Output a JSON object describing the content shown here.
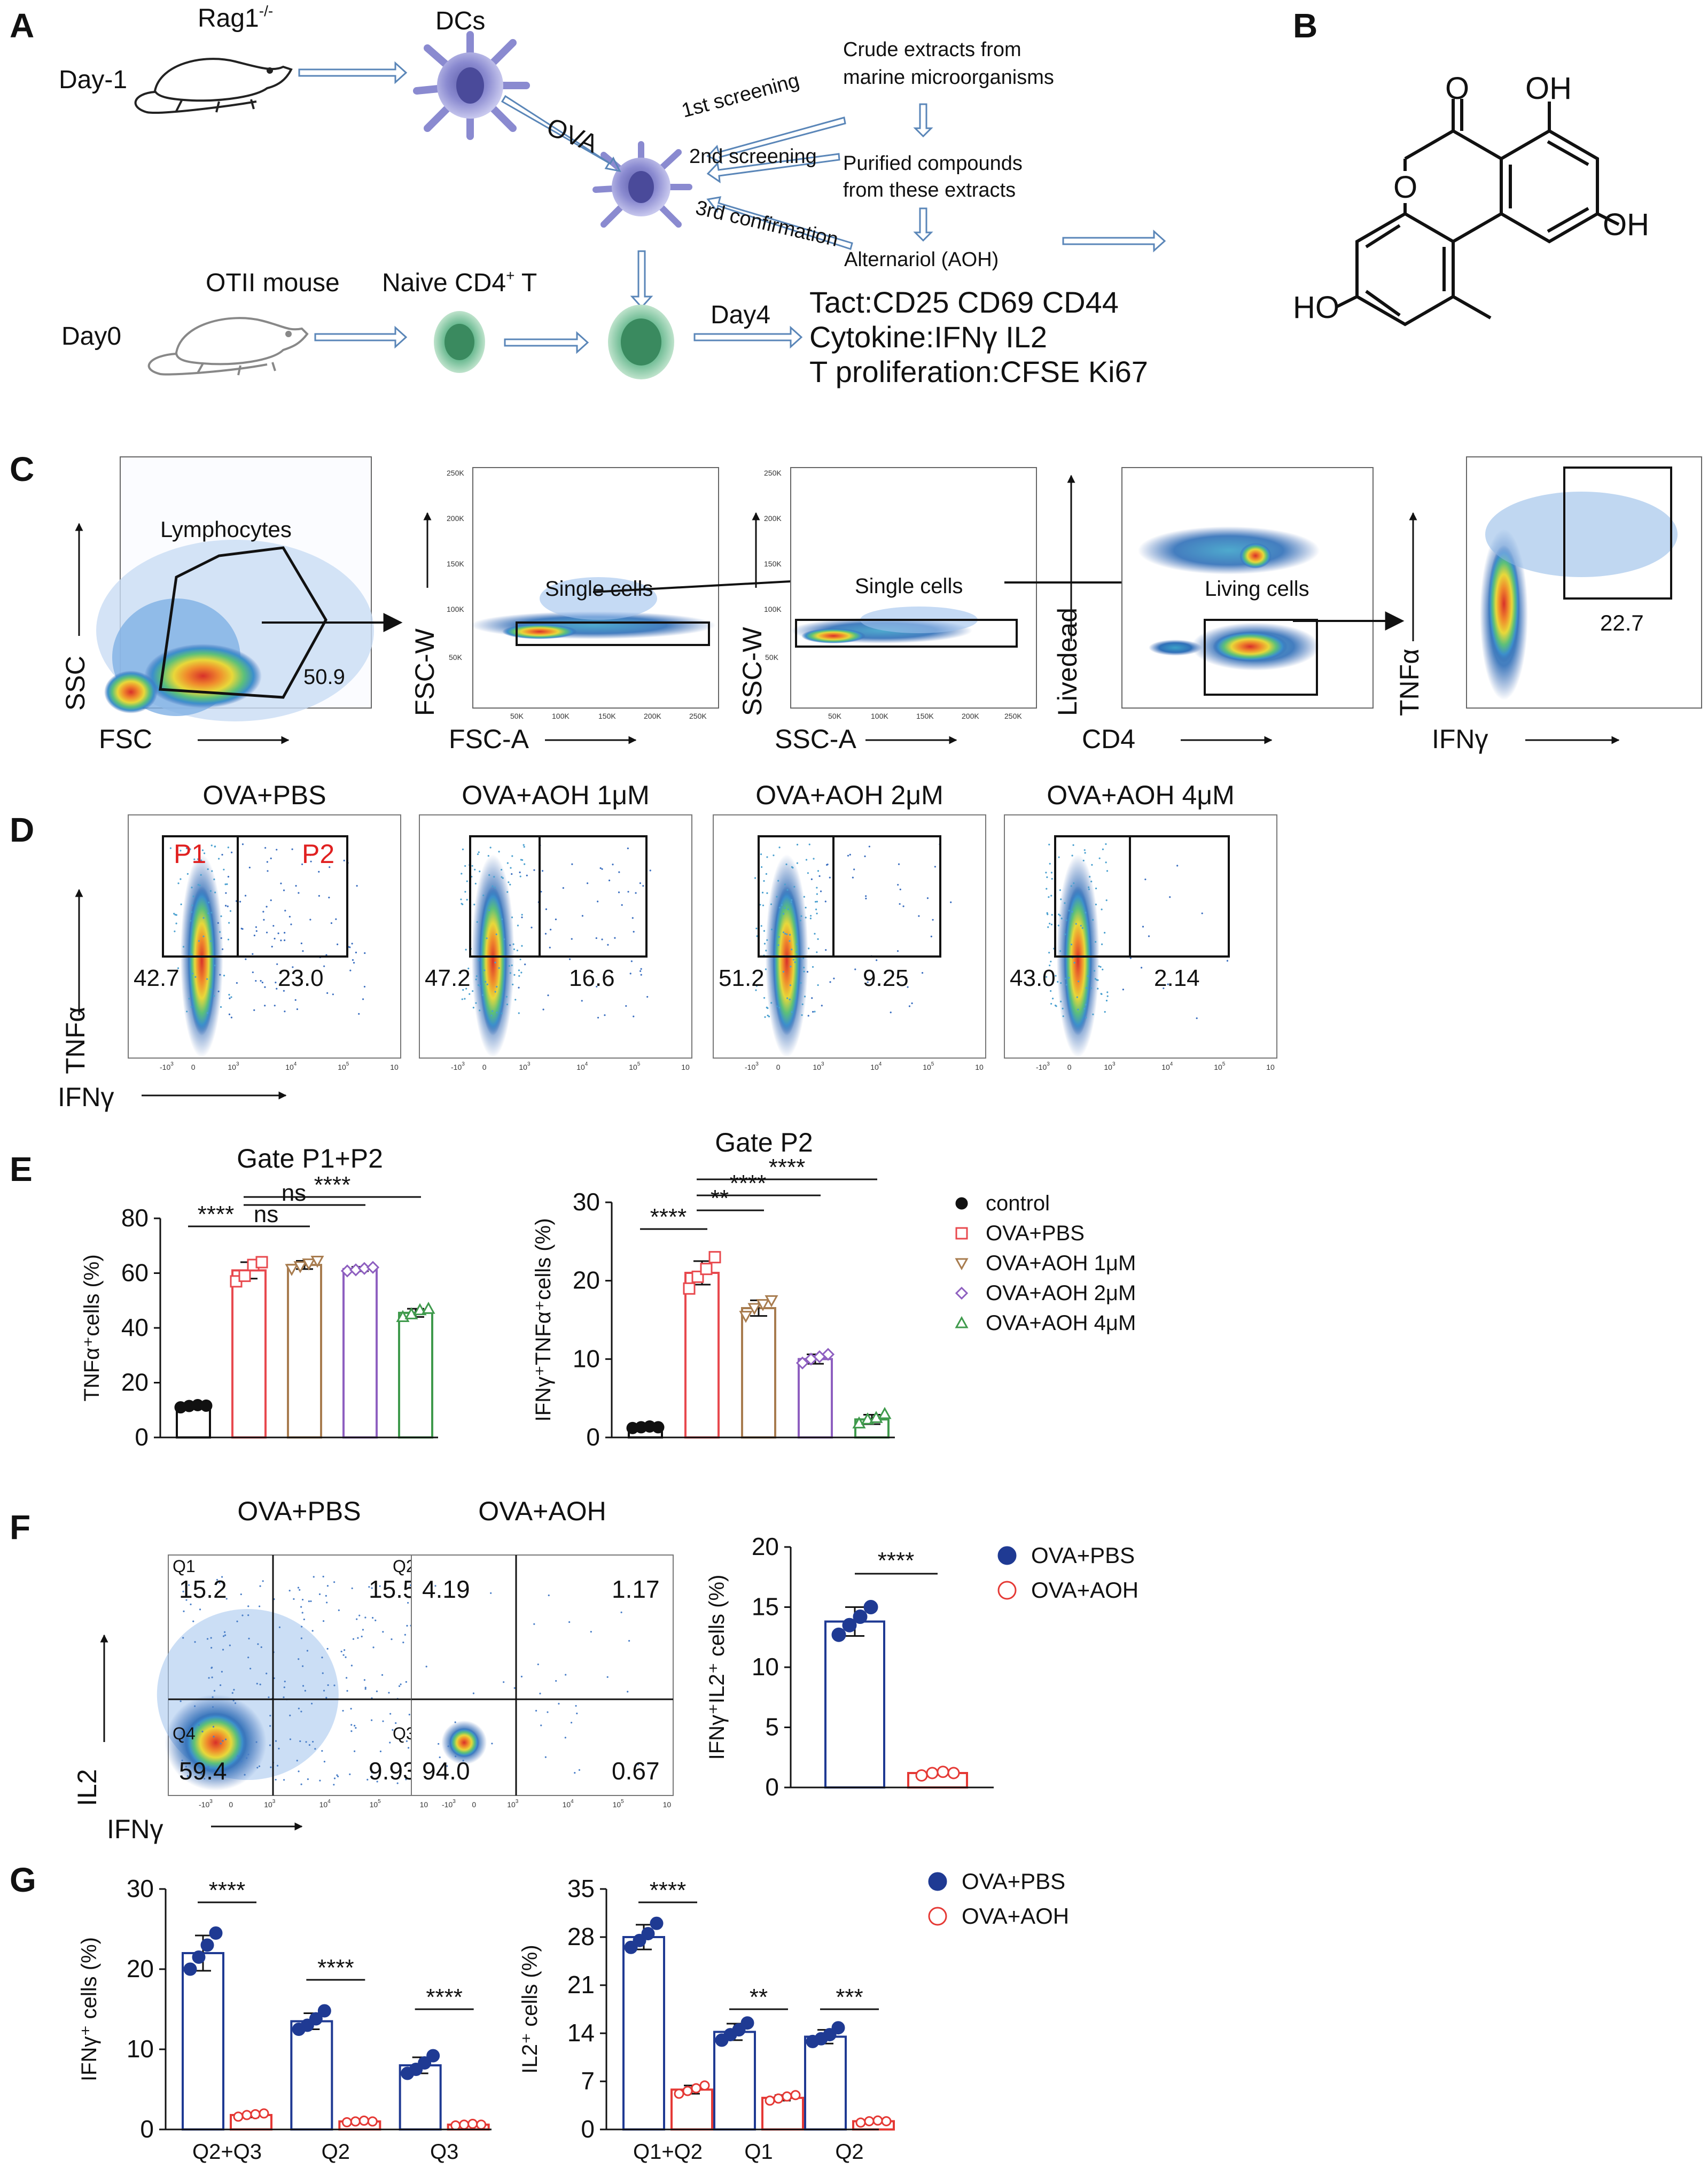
{
  "panel_letters": [
    "A",
    "B",
    "C",
    "D",
    "E",
    "F",
    "G"
  ],
  "colors": {
    "ctrl": "#111111",
    "pbs": "#e8494e",
    "aoh1": "#a87c4f",
    "aoh2": "#8e5fc0",
    "aoh4": "#3f9a4c",
    "blue": "#1f3a93",
    "red": "#e53935",
    "arrow": "#5a86b8"
  },
  "panelA": {
    "mouse1": "Rag1",
    "mouse1_sup": "-/-",
    "day1": "Day-1",
    "dcs": "DCs",
    "ova": "OVA",
    "screen1": "1st screening",
    "screen2": "2nd screening",
    "screen3": "3rd confirmation",
    "crude1": "Crude extracts from",
    "crude2": "marine microorganisms",
    "purified1": "Purified compounds",
    "purified2": "from these extracts",
    "aoh": "Alternariol (AOH)",
    "otii": "OTII mouse",
    "naive": "Naive CD4",
    "naive_sup": "+",
    "naive_t": " T",
    "day0": "Day0",
    "day4": "Day4",
    "tact": "Tact:CD25 CD69 CD44",
    "cytokine": "Cytokine:IFNγ IL2",
    "tprolif": "T proliferation:CFSE Ki67"
  },
  "panelB": {
    "O1": "O",
    "OH1": "OH",
    "O2": "O",
    "OH2": "OH",
    "HO": "HO"
  },
  "panelC": {
    "plots": [
      {
        "xlabel": "FSC",
        "ylabel": "SSC",
        "gate": "Lymphocytes",
        "value": "50.9"
      },
      {
        "xlabel": "FSC-A",
        "ylabel": "FSC-W",
        "gate": "Single cells",
        "ticks": [
          "50K",
          "100K",
          "150K",
          "200K",
          "250K"
        ],
        "yticks": [
          "50K",
          "100K",
          "150K",
          "200K",
          "250K"
        ]
      },
      {
        "xlabel": "SSC-A",
        "ylabel": "SSC-W",
        "gate": "Single cells",
        "ticks": [
          "50K",
          "100K",
          "150K",
          "200K",
          "250K"
        ],
        "yticks": [
          "50K",
          "100K",
          "150K",
          "200K",
          "250K"
        ]
      },
      {
        "xlabel": "CD4",
        "ylabel": "Livedead",
        "gate": "Living cells"
      },
      {
        "xlabel": "IFNγ",
        "ylabel": "TNFα",
        "value": "22.7"
      }
    ]
  },
  "panelD": {
    "titles": [
      "OVA+PBS",
      "OVA+AOH 1μM",
      "OVA+AOH 2μM",
      "OVA+AOH 4μM"
    ],
    "p1": "P1",
    "p2": "P2",
    "left": [
      "42.7",
      "47.2",
      "51.2",
      "43.0"
    ],
    "right": [
      "23.0",
      "16.6",
      "9.25",
      "2.14"
    ],
    "xlabel": "IFNγ",
    "ylabel": "TNFα"
  },
  "panelF": {
    "titles": [
      "OVA+PBS",
      "OVA+AOH"
    ],
    "q1": "Q1",
    "q2": "Q2",
    "q3": "Q3",
    "q4": "Q4",
    "pbs": [
      "15.2",
      "15.5",
      "59.4",
      "9.93"
    ],
    "aoh": [
      "4.19",
      "1.17",
      "94.0",
      "0.67"
    ],
    "xlabel": "IFNγ",
    "ylabel": "IL2"
  },
  "log_ticks": {
    "x": [
      "-10",
      "0",
      "10",
      "10",
      "10",
      "10"
    ],
    "x_sup": [
      "3",
      "",
      "3",
      "4",
      "5",
      ""
    ]
  },
  "chart_data": [
    {
      "type": "bar",
      "id": "E1",
      "title": "Gate P1+P2",
      "ylabel": "TNFα⁺cells (%)",
      "ylim": [
        0,
        80
      ],
      "yticks": [
        "0",
        "20",
        "40",
        "60",
        "80"
      ],
      "categories": [
        "control",
        "OVA+PBS",
        "OVA+AOH 1μM",
        "OVA+AOH 2μM",
        "OVA+AOH 4μM"
      ],
      "values": [
        11.5,
        61,
        63,
        61.5,
        45.5
      ],
      "errors": [
        0.5,
        3,
        1.5,
        0.8,
        1.5
      ],
      "points": [
        [
          11,
          11.5,
          11.8,
          11.6
        ],
        [
          57,
          59,
          63,
          64
        ],
        [
          61.5,
          62.5,
          63.5,
          64.5
        ],
        [
          60.8,
          61.2,
          61.7,
          62.1
        ],
        [
          44,
          45,
          46.5,
          47
        ]
      ],
      "sig": [
        {
          "a": 0,
          "b": 1,
          "label": "****"
        },
        {
          "a": 1,
          "b": 2,
          "label": "ns"
        },
        {
          "a": 1,
          "b": 3,
          "label": "ns"
        },
        {
          "a": 1,
          "b": 4,
          "label": "****"
        }
      ]
    },
    {
      "type": "bar",
      "id": "E2",
      "title": "Gate P2",
      "ylabel": "IFNγ⁺TNFα⁺cells (%)",
      "ylim": [
        0,
        30
      ],
      "yticks": [
        "0",
        "10",
        "20",
        "30"
      ],
      "categories": [
        "control",
        "OVA+PBS",
        "OVA+AOH 1μM",
        "OVA+AOH 2μM",
        "OVA+AOH 4μM"
      ],
      "values": [
        1.3,
        21,
        16.5,
        10,
        2.3
      ],
      "errors": [
        0.2,
        1.5,
        1,
        0.6,
        0.6
      ],
      "points": [
        [
          1.2,
          1.3,
          1.4,
          1.3
        ],
        [
          19,
          20.5,
          21.5,
          23
        ],
        [
          15.5,
          16.5,
          17,
          17.5
        ],
        [
          9.5,
          10,
          10.3,
          10.6
        ],
        [
          1.8,
          2.3,
          2.5,
          3
        ]
      ],
      "sig": [
        {
          "a": 0,
          "b": 1,
          "label": "****"
        },
        {
          "a": 1,
          "b": 2,
          "label": "**"
        },
        {
          "a": 1,
          "b": 3,
          "label": "****"
        },
        {
          "a": 1,
          "b": 4,
          "label": "****"
        }
      ],
      "legend": [
        "control",
        "OVA+PBS",
        "OVA+AOH  1μM",
        "OVA+AOH  2μM",
        "OVA+AOH  4μM"
      ]
    },
    {
      "type": "bar",
      "id": "F3",
      "ylabel": "IFNγ⁺IL2⁺ cells (%)",
      "ylim": [
        0,
        20
      ],
      "yticks": [
        "0",
        "5",
        "10",
        "15",
        "20"
      ],
      "categories": [
        "OVA+PBS",
        "OVA+AOH"
      ],
      "values": [
        13.8,
        1.2
      ],
      "errors": [
        1.2,
        0.15
      ],
      "points": [
        [
          12.7,
          13.5,
          14.2,
          15.0
        ],
        [
          1.0,
          1.2,
          1.3,
          1.2
        ]
      ],
      "sig": [
        {
          "a": 0,
          "b": 1,
          "label": "****"
        }
      ],
      "legend": [
        "OVA+PBS",
        "OVA+AOH"
      ]
    },
    {
      "type": "bar",
      "id": "G1",
      "ylabel": "IFNγ⁺ cells (%)",
      "ylim": [
        0,
        30
      ],
      "yticks": [
        "0",
        "10",
        "20",
        "30"
      ],
      "categories": [
        "Q2+Q3",
        "Q2",
        "Q3"
      ],
      "series": [
        {
          "name": "OVA+PBS",
          "values": [
            22,
            13.5,
            8
          ],
          "errors": [
            2.2,
            1,
            1
          ],
          "points": [
            [
              20,
              21.5,
              23,
              24.5
            ],
            [
              12.5,
              13,
              13.8,
              14.8
            ],
            [
              7,
              7.5,
              8.3,
              9.2
            ]
          ]
        },
        {
          "name": "OVA+AOH",
          "values": [
            1.8,
            1,
            0.6
          ],
          "errors": [
            0.3,
            0.2,
            0.1
          ],
          "points": [
            [
              1.6,
              1.8,
              1.9,
              2.0
            ],
            [
              0.9,
              1,
              1.1,
              1.0
            ],
            [
              0.5,
              0.6,
              0.7,
              0.6
            ]
          ]
        }
      ],
      "sig": [
        "****",
        "****",
        "****"
      ]
    },
    {
      "type": "bar",
      "id": "G2",
      "ylabel": "IL2⁺ cells (%)",
      "ylim": [
        0,
        35
      ],
      "yticks": [
        "0",
        "7",
        "14",
        "21",
        "28",
        "35"
      ],
      "categories": [
        "Q1+Q2",
        "Q1",
        "Q2"
      ],
      "series": [
        {
          "name": "OVA+PBS",
          "values": [
            28,
            14.2,
            13.5
          ],
          "errors": [
            1.8,
            1.2,
            1
          ],
          "points": [
            [
              26.5,
              27.5,
              28.5,
              30
            ],
            [
              13,
              13.8,
              14.5,
              15.5
            ],
            [
              12.8,
              13.2,
              13.8,
              14.8
            ]
          ]
        },
        {
          "name": "OVA+AOH",
          "values": [
            5.8,
            4.6,
            1.2
          ],
          "errors": [
            0.6,
            0.4,
            0.2
          ],
          "points": [
            [
              5.2,
              5.6,
              6,
              6.4
            ],
            [
              4.2,
              4.5,
              4.8,
              5
            ],
            [
              1,
              1.2,
              1.3,
              1.2
            ]
          ]
        }
      ],
      "sig": [
        "****",
        "**",
        "***"
      ],
      "legend": [
        "OVA+PBS",
        "OVA+AOH"
      ]
    }
  ]
}
